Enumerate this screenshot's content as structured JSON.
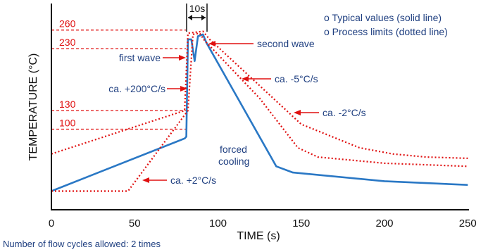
{
  "chart_data": {
    "type": "line",
    "xlabel": "TIME (s)",
    "ylabel": "TEMPERATURE (°C)",
    "xlim": [
      0,
      250
    ],
    "ylim": [
      0,
      275
    ],
    "x_ticks": [
      "0",
      "50",
      "100",
      "150",
      "200",
      "250"
    ],
    "x_tick_values": [
      0,
      50,
      100,
      150,
      200,
      250
    ],
    "y_ref_lines": [
      {
        "label": "260",
        "value": 260
      },
      {
        "label": "230",
        "value": 230
      },
      {
        "label": "130",
        "value": 130
      },
      {
        "label": "100",
        "value": 100
      }
    ],
    "legend": [
      "o Typical values (solid line)",
      "o Process limits (dotted line)"
    ],
    "series": [
      {
        "style": "solid",
        "color": "#2a78c5",
        "points": [
          [
            0,
            0
          ],
          [
            80,
            85
          ],
          [
            81,
            88
          ],
          [
            82,
            245
          ],
          [
            84,
            245
          ],
          [
            86,
            210
          ],
          [
            88,
            250
          ],
          [
            91,
            253
          ],
          [
            93,
            240
          ],
          [
            135,
            40
          ],
          [
            145,
            30
          ],
          [
            200,
            16
          ],
          [
            250,
            10
          ]
        ]
      },
      {
        "style": "dotted",
        "color": "#e01010",
        "points": [
          [
            0,
            0
          ],
          [
            46,
            0
          ],
          [
            82,
            130
          ],
          [
            85,
            253
          ],
          [
            89,
            255
          ],
          [
            92,
            243
          ],
          [
            125,
            150
          ],
          [
            148,
            70
          ],
          [
            160,
            55
          ],
          [
            200,
            45
          ],
          [
            250,
            40
          ]
        ]
      },
      {
        "style": "dotted",
        "color": "#e01010",
        "points": [
          [
            0,
            60
          ],
          [
            80,
            130
          ],
          [
            82,
            255
          ],
          [
            91,
            258
          ],
          [
            95,
            245
          ],
          [
            150,
            108
          ],
          [
            185,
            70
          ],
          [
            205,
            60
          ],
          [
            225,
            55
          ],
          [
            250,
            53
          ]
        ]
      }
    ],
    "annotations": {
      "width_label": "10s",
      "second_wave": "second wave",
      "first_wave": "first wave",
      "heat_rate": "ca. +200°C/s",
      "cool_5": "ca. -5°C/s",
      "cool_2": "ca. -2°C/s",
      "preheat": "ca. +2°C/s",
      "forced_line1": "forced",
      "forced_line2": "cooling"
    }
  },
  "footer": "Number of flow cycles allowed: 2 times",
  "colors": {
    "axis": "#111111",
    "typical": "#2a78c5",
    "limits": "#e01010",
    "text_blue": "#1f3f80"
  }
}
